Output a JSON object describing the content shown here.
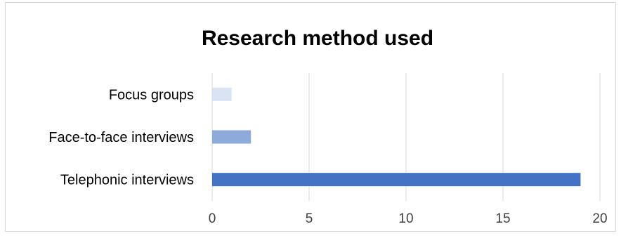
{
  "chart_data": {
    "type": "bar",
    "orientation": "horizontal",
    "title": "Research method used",
    "xlabel": "",
    "ylabel": "",
    "categories": [
      "Focus groups",
      "Face-to-face interviews",
      "Telephonic interviews"
    ],
    "values": [
      1,
      2,
      19
    ],
    "bar_colors": [
      "#dae3f3",
      "#8eaadb",
      "#4472c4"
    ],
    "xlim": [
      0,
      20
    ],
    "xticks": [
      0,
      5,
      10,
      15,
      20
    ],
    "grid": "vertical",
    "legend": "none"
  }
}
